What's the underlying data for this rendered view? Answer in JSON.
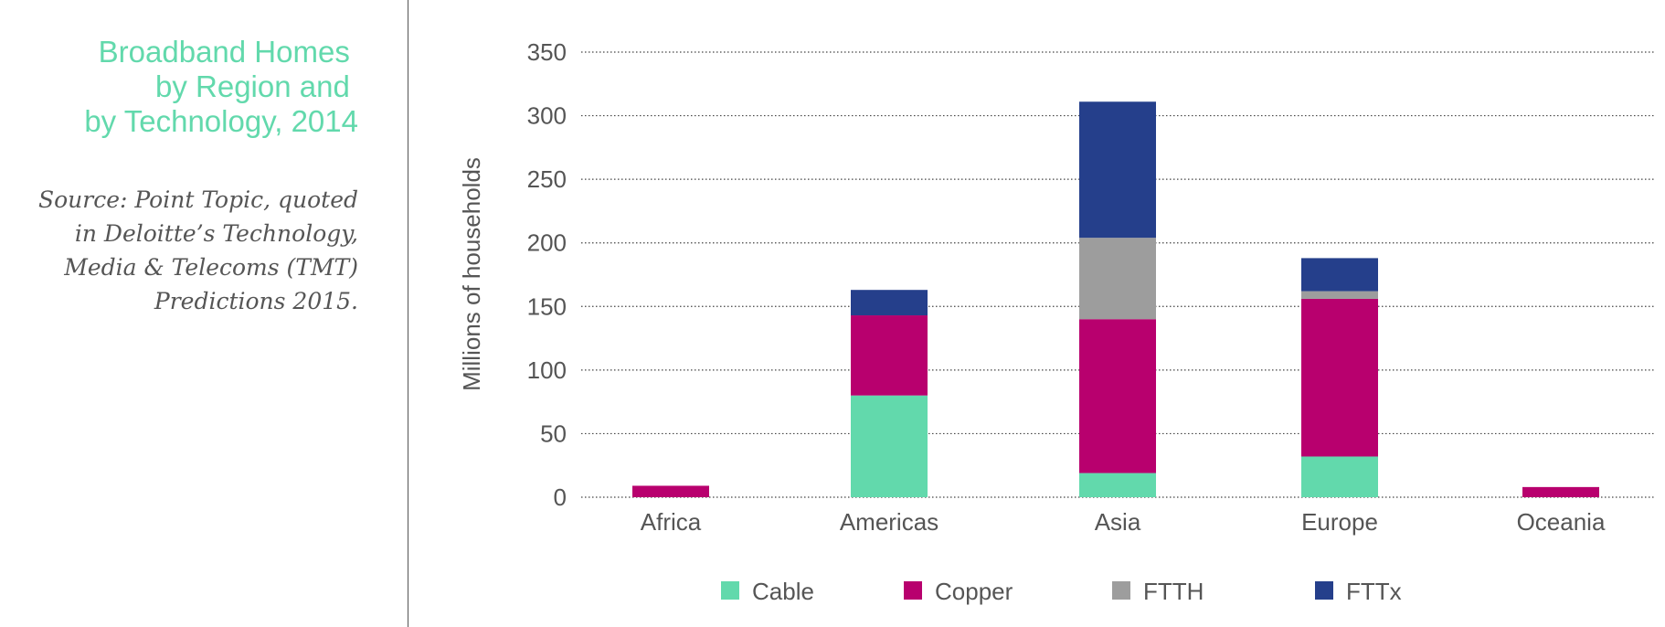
{
  "title_lines": [
    "Broadband Homes ",
    "by Region and ",
    "by Technology, 2014"
  ],
  "source_lines": [
    "Source: Point Topic, quoted",
    "in Deloitte’s Technology,",
    "Media & Telecoms (TMT)",
    "Predictions 2015."
  ],
  "colors": {
    "title": "#62d9ac",
    "Cable": "#62d9ac",
    "Copper": "#b8006e",
    "FTTH": "#9d9d9d",
    "FTTx": "#253f8b"
  },
  "chart_data": {
    "type": "bar",
    "stacked": true,
    "categories": [
      "Africa",
      "Americas",
      "Asia",
      "Europe",
      "Oceania"
    ],
    "series": [
      {
        "name": "Cable",
        "values": [
          0,
          80,
          19,
          32,
          0
        ]
      },
      {
        "name": "Copper",
        "values": [
          9,
          63,
          121,
          124,
          8
        ]
      },
      {
        "name": "FTTH",
        "values": [
          0,
          0,
          64,
          6,
          0
        ]
      },
      {
        "name": "FTTx",
        "values": [
          0,
          20,
          107,
          26,
          0
        ]
      }
    ],
    "ylabel": "Millions of households",
    "xlabel": "",
    "ylim": [
      0,
      350
    ],
    "yticks": [
      0,
      50,
      100,
      150,
      200,
      250,
      300,
      350
    ],
    "grid": true,
    "legend_position": "bottom"
  }
}
